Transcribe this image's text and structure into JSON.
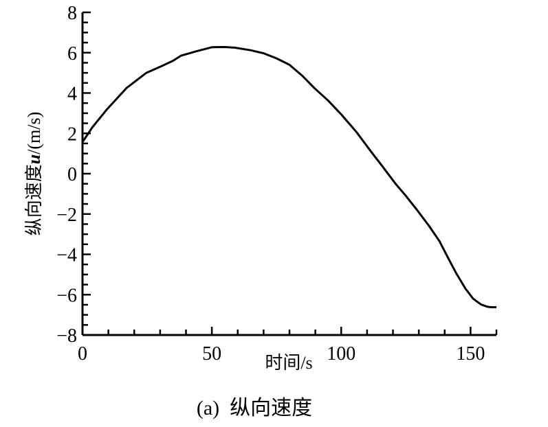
{
  "chart_data": {
    "type": "line",
    "title": "",
    "caption": "(a)  纵向速度",
    "xlabel": "时间/s",
    "ylabel_prefix": "纵向速度",
    "ylabel_var": "u",
    "ylabel_suffix": "/(m/s)",
    "xlim": [
      0,
      160
    ],
    "ylim": [
      -8,
      8
    ],
    "xticks": [
      0,
      50,
      100,
      150
    ],
    "xtick_labels": [
      "0",
      "50",
      "100",
      "150"
    ],
    "yticks": [
      8,
      6,
      4,
      2,
      0,
      -2,
      -4,
      -6,
      -8
    ],
    "ytick_labels": [
      "8",
      "6",
      "4",
      "2",
      "0",
      "−2",
      "−4",
      "−6",
      "−8"
    ],
    "grid": false,
    "series": [
      {
        "name": "u",
        "color": "#000000",
        "x": [
          0,
          3.8,
          9.3,
          17,
          24.7,
          30,
          35,
          38,
          44,
          50,
          55,
          58.8,
          65,
          70,
          75,
          80,
          85,
          89.6,
          95,
          100,
          106,
          111.5,
          116,
          121,
          125,
          129,
          134,
          138,
          141,
          144.5,
          148,
          151,
          154,
          156.6,
          158,
          160
        ],
        "y": [
          1.57,
          2.3,
          3.17,
          4.25,
          5.0,
          5.3,
          5.6,
          5.85,
          6.07,
          6.27,
          6.28,
          6.25,
          6.12,
          5.97,
          5.72,
          5.4,
          4.85,
          4.25,
          3.62,
          2.94,
          2.05,
          1.1,
          0.35,
          -0.5,
          -1.1,
          -1.75,
          -2.6,
          -3.35,
          -4.1,
          -4.95,
          -5.7,
          -6.2,
          -6.48,
          -6.6,
          -6.62,
          -6.62
        ]
      }
    ]
  }
}
